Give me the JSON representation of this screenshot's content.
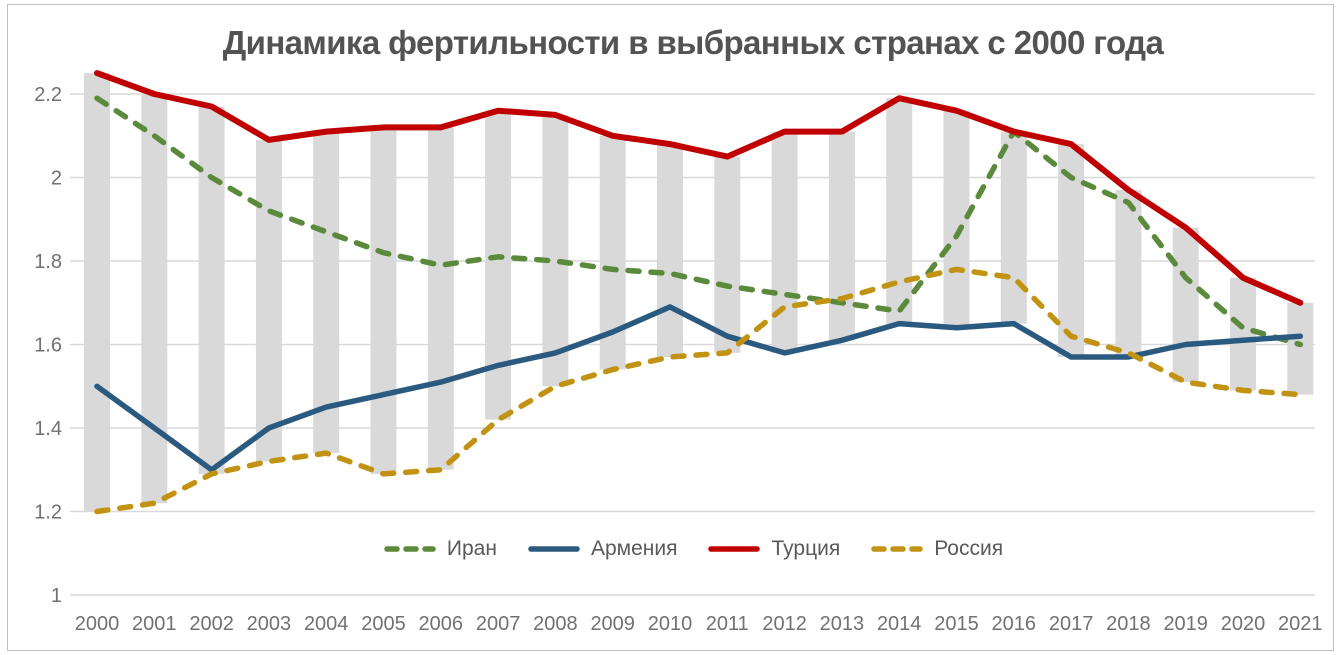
{
  "frame": {
    "border_color": "#bfbfbf",
    "background": "#ffffff"
  },
  "chart_data": {
    "type": "line",
    "title": "Динамика фертильности в выбранных странах с 2000 года",
    "xlabel": "",
    "ylabel": "",
    "categories": [
      "2000",
      "2001",
      "2002",
      "2003",
      "2004",
      "2005",
      "2006",
      "2007",
      "2008",
      "2009",
      "2010",
      "2011",
      "2012",
      "2013",
      "2014",
      "2015",
      "2016",
      "2017",
      "2018",
      "2019",
      "2020",
      "2021"
    ],
    "y_ticks": [
      {
        "label": "2.2",
        "value": 2.2
      },
      {
        "label": "2",
        "value": 2.0
      },
      {
        "label": "1.8",
        "value": 1.8
      },
      {
        "label": "1.6",
        "value": 1.6
      },
      {
        "label": "1.4",
        "value": 1.4
      },
      {
        "label": "1.2",
        "value": 1.2
      },
      {
        "label": "1",
        "value": 1.0
      }
    ],
    "ylim": [
      1.0,
      2.26
    ],
    "grid": "horizontal",
    "gridline_color": "#d9d9d9",
    "legend_position": "bottom-center",
    "range_bars": {
      "meaning": "gray columns spanning the min-max range of the four series each year",
      "color": "#d9d9d9"
    },
    "series": [
      {
        "name": "Иран",
        "color": "#5c8a3c",
        "style": "dashed",
        "values": [
          2.19,
          2.1,
          2.0,
          1.92,
          1.87,
          1.82,
          1.79,
          1.81,
          1.8,
          1.78,
          1.77,
          1.74,
          1.72,
          1.7,
          1.68,
          1.86,
          2.11,
          2.0,
          1.94,
          1.76,
          1.64,
          1.6
        ]
      },
      {
        "name": "Армения",
        "color": "#2b5a80",
        "style": "solid",
        "values": [
          1.5,
          1.4,
          1.3,
          1.4,
          1.45,
          1.48,
          1.51,
          1.55,
          1.58,
          1.63,
          1.69,
          1.62,
          1.58,
          1.61,
          1.65,
          1.64,
          1.65,
          1.57,
          1.57,
          1.6,
          1.61,
          1.62
        ]
      },
      {
        "name": "Турция",
        "color": "#c00000",
        "style": "solid",
        "values": [
          2.25,
          2.2,
          2.17,
          2.09,
          2.11,
          2.12,
          2.12,
          2.16,
          2.15,
          2.1,
          2.08,
          2.05,
          2.11,
          2.11,
          2.19,
          2.16,
          2.11,
          2.08,
          1.97,
          1.88,
          1.76,
          1.7
        ]
      },
      {
        "name": "Россия",
        "color": "#c29313",
        "style": "dashed",
        "values": [
          1.2,
          1.22,
          1.29,
          1.32,
          1.34,
          1.29,
          1.3,
          1.42,
          1.5,
          1.54,
          1.57,
          1.58,
          1.69,
          1.71,
          1.75,
          1.78,
          1.76,
          1.62,
          1.58,
          1.51,
          1.49,
          1.48
        ]
      }
    ]
  }
}
